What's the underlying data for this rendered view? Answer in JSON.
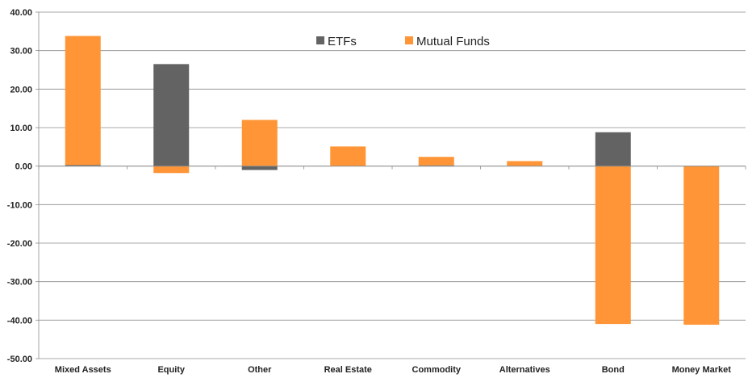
{
  "chart_data": {
    "type": "bar",
    "stacked": true,
    "categories": [
      "Mixed Assets",
      "Equity",
      "Other",
      "Real Estate",
      "Commodity",
      "Alternatives",
      "Bond",
      "Money Market"
    ],
    "series": [
      {
        "name": "ETFs",
        "color": "#636363",
        "values": [
          0.3,
          26.5,
          -1.0,
          0.0,
          0.2,
          0.0,
          8.8,
          0.0
        ]
      },
      {
        "name": "Mutual Funds",
        "color": "#ff9536",
        "values": [
          33.5,
          -1.8,
          12.0,
          5.1,
          2.2,
          1.3,
          -41.0,
          -41.2
        ]
      }
    ],
    "ylim": [
      -50,
      40
    ],
    "yticks": [
      "40.00",
      "30.00",
      "20.00",
      "10.00",
      "0.00",
      "-10.00",
      "-20.00",
      "-30.00",
      "-40.00",
      "-50.00"
    ],
    "ytick_values": [
      40,
      30,
      20,
      10,
      0,
      -10,
      -20,
      -30,
      -40,
      -50
    ],
    "title": "",
    "xlabel": "",
    "ylabel": "",
    "grid": true,
    "legend_position": "top-center"
  }
}
